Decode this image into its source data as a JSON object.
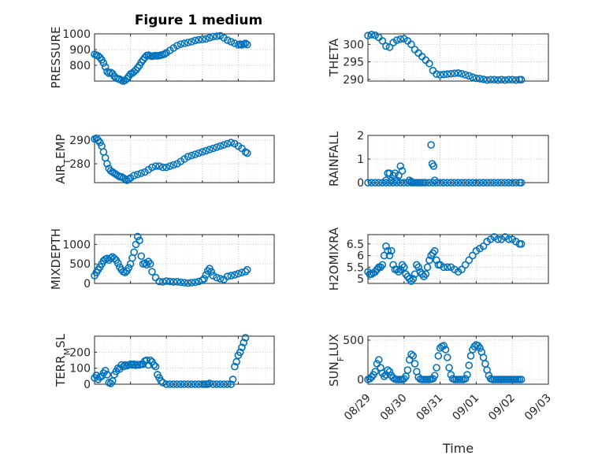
{
  "figure": {
    "title": "Figure 1 medium"
  },
  "chart_data": [
    {
      "type": "scatter",
      "panel": "pressure",
      "ylabel": "PRESSURE",
      "ylim": [
        700,
        1000
      ],
      "yticks": [
        800,
        900,
        1000
      ],
      "xlim": [
        0,
        5
      ],
      "xticks": [],
      "grid": true,
      "color": "#0072BD",
      "x": [
        0,
        0.05,
        0.1,
        0.15,
        0.2,
        0.25,
        0.3,
        0.35,
        0.4,
        0.45,
        0.5,
        0.55,
        0.6,
        0.65,
        0.7,
        0.75,
        0.8,
        0.85,
        0.9,
        0.95,
        1,
        1.05,
        1.1,
        1.15,
        1.2,
        1.25,
        1.3,
        1.35,
        1.4,
        1.45,
        1.5,
        1.55,
        1.6,
        1.65,
        1.7,
        1.75,
        1.8,
        1.85,
        1.9,
        1.95,
        2,
        2.1,
        2.2,
        2.3,
        2.4,
        2.5,
        2.6,
        2.7,
        2.8,
        2.9,
        3,
        3.1,
        3.2,
        3.3,
        3.4,
        3.5,
        3.6,
        3.7,
        3.8,
        3.9,
        4,
        4.05,
        4.1,
        4.15,
        4.2,
        4.25
      ],
      "y": [
        870,
        865,
        860,
        850,
        835,
        815,
        790,
        760,
        750,
        755,
        748,
        730,
        720,
        715,
        712,
        705,
        700,
        705,
        715,
        730,
        745,
        750,
        760,
        770,
        785,
        800,
        820,
        835,
        850,
        862,
        865,
        860,
        858,
        860,
        862,
        860,
        862,
        865,
        868,
        872,
        880,
        895,
        910,
        925,
        935,
        940,
        945,
        950,
        958,
        962,
        965,
        968,
        975,
        982,
        985,
        988,
        975,
        960,
        950,
        940,
        930,
        935,
        930,
        935,
        940,
        932
      ]
    },
    {
      "type": "scatter",
      "panel": "theta",
      "ylabel": "THETA",
      "ylim": [
        289.5,
        303
      ],
      "yticks": [
        290,
        295,
        300
      ],
      "xlim": [
        0,
        5
      ],
      "xticks": [],
      "grid": true,
      "color": "#0072BD",
      "x": [
        0,
        0.1,
        0.2,
        0.3,
        0.4,
        0.5,
        0.6,
        0.7,
        0.8,
        0.9,
        1,
        1.1,
        1.2,
        1.3,
        1.4,
        1.5,
        1.6,
        1.7,
        1.8,
        1.9,
        2,
        2.1,
        2.2,
        2.3,
        2.4,
        2.5,
        2.6,
        2.7,
        2.8,
        2.9,
        3,
        3.1,
        3.2,
        3.3,
        3.4,
        3.5,
        3.6,
        3.7,
        3.8,
        3.9,
        4,
        4.1,
        4.2,
        4.25
      ],
      "y": [
        302.5,
        302.8,
        302.6,
        302,
        301,
        299.5,
        299.2,
        300.5,
        301.2,
        301.5,
        301.6,
        301,
        300,
        298.5,
        297.5,
        296.5,
        295.5,
        294.5,
        292.5,
        291.5,
        291.3,
        291.4,
        291.5,
        291.6,
        291.7,
        291.8,
        291.6,
        291.3,
        291,
        290.6,
        290.3,
        290.2,
        290,
        289.8,
        289.9,
        289.9,
        289.8,
        289.9,
        289.8,
        289.9,
        289.9,
        289.8,
        289.9,
        289.9
      ]
    },
    {
      "type": "scatter",
      "panel": "air_temp",
      "ylabel": "AIR_TEMP",
      "ylim": [
        272,
        292
      ],
      "yticks": [
        280,
        290
      ],
      "xlim": [
        0,
        5
      ],
      "xticks": [],
      "grid": true,
      "color": "#0072BD",
      "x": [
        0,
        0.05,
        0.1,
        0.15,
        0.2,
        0.25,
        0.3,
        0.35,
        0.4,
        0.45,
        0.5,
        0.55,
        0.6,
        0.65,
        0.7,
        0.75,
        0.8,
        0.85,
        0.9,
        0.95,
        1,
        1.1,
        1.2,
        1.3,
        1.4,
        1.5,
        1.6,
        1.7,
        1.8,
        1.9,
        2,
        2.1,
        2.2,
        2.3,
        2.4,
        2.5,
        2.6,
        2.7,
        2.8,
        2.9,
        3,
        3.1,
        3.2,
        3.3,
        3.4,
        3.5,
        3.6,
        3.7,
        3.8,
        3.9,
        4,
        4.1,
        4.2,
        4.25
      ],
      "y": [
        290.5,
        290.8,
        290,
        289,
        287.5,
        285,
        282.5,
        280,
        278,
        277,
        276.5,
        276,
        275.5,
        275,
        274.5,
        274.5,
        274,
        273.5,
        273,
        273.5,
        274,
        275,
        275.5,
        276,
        276.5,
        277.5,
        278.5,
        279,
        279,
        278.5,
        278.5,
        279,
        279.5,
        280,
        281,
        282,
        283,
        283.5,
        284,
        284.5,
        285,
        285.5,
        286,
        286.5,
        287,
        287.5,
        288,
        288.5,
        289,
        288.5,
        287.5,
        286.5,
        285,
        284.5
      ]
    },
    {
      "type": "scatter",
      "panel": "rainfall",
      "ylabel": "RAINFALL",
      "ylim": [
        0,
        2
      ],
      "yticks": [
        0,
        1,
        2
      ],
      "xlim": [
        0,
        5
      ],
      "xticks": [],
      "grid": true,
      "color": "#0072BD",
      "x": [
        0,
        0.1,
        0.2,
        0.3,
        0.4,
        0.5,
        0.6,
        0.7,
        0.8,
        0.9,
        1,
        1.1,
        1.2,
        1.25,
        1.3,
        1.35,
        1.4,
        1.45,
        1.5,
        1.55,
        1.6,
        1.7,
        1.8,
        1.9,
        2,
        2.1,
        2.2,
        2.3,
        2.4,
        2.5,
        2.6,
        2.7,
        2.8,
        2.9,
        3,
        3.1,
        3.2,
        3.3,
        3.4,
        3.5,
        3.6,
        3.7,
        3.8,
        3.9,
        4,
        4.1,
        4.2,
        4.25,
        0.5,
        0.55,
        0.6,
        0.65,
        0.7,
        0.75,
        0.8,
        0.85,
        0.9,
        0.95,
        1.15,
        1.2,
        1.75,
        1.78,
        1.82,
        1.85
      ],
      "y": [
        0,
        0,
        0,
        0,
        0,
        0,
        0,
        0,
        0,
        0,
        0,
        0,
        0,
        0,
        0,
        0,
        0,
        0,
        0,
        0,
        0,
        0,
        0,
        0,
        0,
        0,
        0,
        0,
        0,
        0,
        0,
        0,
        0,
        0,
        0,
        0,
        0,
        0,
        0,
        0,
        0,
        0,
        0,
        0,
        0,
        0,
        0,
        0,
        0.1,
        0.4,
        0.4,
        0.1,
        0.3,
        0.4,
        0.1,
        0.3,
        0.7,
        0.5,
        0.1,
        0.05,
        1.6,
        0.8,
        0.7,
        0.1
      ]
    },
    {
      "type": "scatter",
      "panel": "mixdepth",
      "ylabel": "MIXDEPTH",
      "ylim": [
        0,
        1250
      ],
      "yticks": [
        0,
        500,
        1000
      ],
      "xlim": [
        0,
        5
      ],
      "xticks": [],
      "grid": true,
      "color": "#0072BD",
      "x": [
        0,
        0.05,
        0.1,
        0.15,
        0.2,
        0.25,
        0.3,
        0.35,
        0.4,
        0.45,
        0.5,
        0.55,
        0.6,
        0.65,
        0.7,
        0.75,
        0.8,
        0.85,
        0.9,
        0.95,
        1,
        1.05,
        1.1,
        1.15,
        1.2,
        1.25,
        1.3,
        1.35,
        1.4,
        1.45,
        1.5,
        1.55,
        1.6,
        1.7,
        1.8,
        1.9,
        2,
        2.1,
        2.2,
        2.3,
        2.4,
        2.5,
        2.6,
        2.7,
        2.8,
        2.9,
        3,
        3.05,
        3.1,
        3.15,
        3.2,
        3.25,
        3.3,
        3.4,
        3.5,
        3.6,
        3.7,
        3.8,
        3.9,
        4,
        4.1,
        4.2,
        4.25
      ],
      "y": [
        200,
        280,
        350,
        420,
        500,
        580,
        620,
        640,
        600,
        650,
        680,
        640,
        600,
        520,
        420,
        350,
        300,
        280,
        320,
        400,
        500,
        650,
        800,
        1000,
        1200,
        1100,
        700,
        500,
        520,
        480,
        560,
        500,
        300,
        150,
        50,
        40,
        60,
        50,
        40,
        45,
        30,
        20,
        10,
        20,
        30,
        50,
        80,
        120,
        220,
        320,
        380,
        300,
        200,
        150,
        120,
        100,
        180,
        200,
        220,
        250,
        280,
        300,
        350
      ]
    },
    {
      "type": "scatter",
      "panel": "h2omixra",
      "ylabel": "H2OMIXRA",
      "ylim": [
        4.8,
        6.9
      ],
      "yticks": [
        5,
        5.5,
        6,
        6.5
      ],
      "xlim": [
        0,
        5
      ],
      "xticks": [],
      "grid": true,
      "color": "#0072BD",
      "x": [
        0,
        0.05,
        0.1,
        0.15,
        0.2,
        0.25,
        0.3,
        0.35,
        0.4,
        0.45,
        0.5,
        0.55,
        0.6,
        0.65,
        0.7,
        0.75,
        0.8,
        0.85,
        0.9,
        0.95,
        1,
        1.05,
        1.1,
        1.15,
        1.2,
        1.25,
        1.3,
        1.35,
        1.4,
        1.45,
        1.5,
        1.55,
        1.6,
        1.65,
        1.7,
        1.75,
        1.8,
        1.85,
        1.9,
        1.95,
        2,
        2.1,
        2.2,
        2.3,
        2.4,
        2.5,
        2.6,
        2.7,
        2.8,
        2.9,
        3,
        3.1,
        3.2,
        3.3,
        3.4,
        3.5,
        3.6,
        3.7,
        3.8,
        3.9,
        4,
        4.1,
        4.2,
        4.25
      ],
      "y": [
        5.3,
        5.2,
        5.2,
        5.25,
        5.3,
        5.4,
        5.5,
        5.5,
        5.6,
        6,
        6.4,
        6.2,
        6.0,
        6.2,
        5.6,
        5.4,
        5.4,
        5.3,
        5.4,
        5.6,
        5.5,
        5.2,
        5.1,
        5.0,
        4.9,
        5.0,
        5.2,
        5.6,
        5.5,
        5.3,
        5.2,
        5.1,
        5.2,
        5.5,
        5.8,
        6.0,
        6.1,
        6.2,
        5.8,
        5.6,
        5.6,
        5.5,
        5.5,
        5.5,
        5.4,
        5.3,
        5.4,
        5.6,
        5.8,
        6.0,
        6.2,
        6.3,
        6.4,
        6.6,
        6.7,
        6.8,
        6.7,
        6.7,
        6.8,
        6.7,
        6.7,
        6.6,
        6.5,
        6.5
      ]
    },
    {
      "type": "scatter",
      "panel": "terr_msl",
      "ylabel": "TERR_MSL",
      "ylim": [
        0,
        300
      ],
      "yticks": [
        0,
        100,
        200
      ],
      "xlim": [
        0,
        5
      ],
      "xticks": [],
      "grid": true,
      "color": "#0072BD",
      "x": [
        0,
        0.05,
        0.1,
        0.15,
        0.2,
        0.25,
        0.3,
        0.35,
        0.4,
        0.45,
        0.5,
        0.55,
        0.6,
        0.65,
        0.7,
        0.75,
        0.8,
        0.85,
        0.9,
        0.95,
        1,
        1.05,
        1.1,
        1.15,
        1.2,
        1.25,
        1.3,
        1.35,
        1.4,
        1.45,
        1.5,
        1.55,
        1.6,
        1.65,
        1.7,
        1.75,
        1.8,
        1.85,
        1.9,
        2,
        2.1,
        2.2,
        2.3,
        2.4,
        2.5,
        2.6,
        2.7,
        2.8,
        2.9,
        3,
        3.05,
        3.1,
        3.15,
        3.2,
        3.3,
        3.4,
        3.5,
        3.6,
        3.7,
        3.8,
        3.85,
        3.9,
        3.95,
        4,
        4.05,
        4.1,
        4.15,
        4.2
      ],
      "y": [
        40,
        55,
        30,
        45,
        50,
        70,
        85,
        60,
        10,
        5,
        20,
        60,
        80,
        100,
        95,
        120,
        110,
        120,
        115,
        120,
        125,
        120,
        125,
        118,
        122,
        120,
        125,
        125,
        145,
        150,
        120,
        150,
        140,
        120,
        110,
        60,
        40,
        20,
        10,
        0,
        0,
        0,
        0,
        0,
        0,
        0,
        0,
        0,
        0,
        0,
        0,
        0,
        0,
        5,
        0,
        0,
        0,
        0,
        0,
        0,
        30,
        110,
        140,
        180,
        200,
        230,
        260,
        290
      ]
    },
    {
      "type": "scatter",
      "panel": "sun_flux",
      "ylabel": "SUN_FLUX",
      "ylim": [
        -60,
        550
      ],
      "yticks": [
        0,
        500
      ],
      "xlim": [
        0,
        5
      ],
      "xticks": [
        "08/29",
        "08/30",
        "08/31",
        "09/01",
        "09/02",
        "09/03"
      ],
      "xlabel": "Time",
      "grid": true,
      "color": "#0072BD",
      "x": [
        0,
        0.05,
        0.1,
        0.15,
        0.2,
        0.25,
        0.3,
        0.35,
        0.4,
        0.45,
        0.5,
        0.55,
        0.6,
        0.65,
        0.7,
        0.75,
        0.8,
        0.85,
        0.9,
        0.95,
        1,
        1.05,
        1.1,
        1.15,
        1.2,
        1.25,
        1.3,
        1.35,
        1.4,
        1.45,
        1.5,
        1.55,
        1.6,
        1.65,
        1.7,
        1.75,
        1.8,
        1.85,
        1.9,
        1.95,
        2,
        2.05,
        2.1,
        2.15,
        2.2,
        2.25,
        2.3,
        2.35,
        2.4,
        2.45,
        2.5,
        2.55,
        2.6,
        2.65,
        2.7,
        2.75,
        2.8,
        2.85,
        2.9,
        2.95,
        3,
        3.05,
        3.1,
        3.15,
        3.2,
        3.25,
        3.3,
        3.35,
        3.4,
        3.45,
        3.5,
        3.55,
        3.6,
        3.65,
        3.7,
        3.75,
        3.8,
        3.85,
        3.9,
        3.95,
        4,
        4.05,
        4.1,
        4.15,
        4.2,
        4.25
      ],
      "y": [
        0,
        10,
        30,
        60,
        100,
        200,
        250,
        150,
        80,
        40,
        60,
        120,
        100,
        50,
        20,
        5,
        0,
        0,
        0,
        0,
        10,
        40,
        120,
        250,
        320,
        300,
        200,
        100,
        30,
        5,
        0,
        0,
        0,
        0,
        0,
        5,
        10,
        50,
        150,
        300,
        400,
        420,
        430,
        380,
        280,
        150,
        60,
        10,
        0,
        0,
        0,
        0,
        0,
        0,
        10,
        60,
        180,
        300,
        380,
        420,
        440,
        430,
        400,
        350,
        280,
        200,
        120,
        50,
        10,
        0,
        0,
        0,
        0,
        0,
        0,
        0,
        0,
        0,
        0,
        0,
        0,
        0,
        0,
        0,
        0,
        0
      ]
    }
  ]
}
